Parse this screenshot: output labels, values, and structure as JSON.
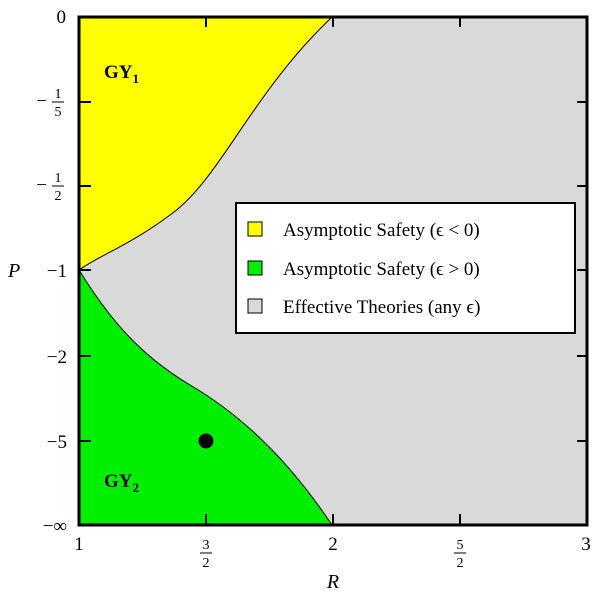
{
  "chart_data": {
    "type": "area",
    "xlabel": "R",
    "ylabel": "P",
    "x_ticks": [
      {
        "value": 1,
        "label": "1"
      },
      {
        "value": 1.5,
        "num": "3",
        "den": "2"
      },
      {
        "value": 2,
        "label": "2"
      },
      {
        "value": 2.5,
        "num": "5",
        "den": "2"
      },
      {
        "value": 3,
        "label": "3"
      }
    ],
    "y_ticks": [
      {
        "value": 0,
        "label": "0"
      },
      {
        "value": -0.2,
        "prefix": "−",
        "num": "1",
        "den": "5"
      },
      {
        "value": -0.5,
        "prefix": "−",
        "num": "1",
        "den": "2"
      },
      {
        "value": -1,
        "label": "−1"
      },
      {
        "value": -2,
        "label": "−2"
      },
      {
        "value": -5,
        "label": "−5"
      },
      {
        "value": "-inf",
        "label": "−∞"
      }
    ],
    "xlim": [
      1,
      3
    ],
    "ylim": [
      "-inf",
      0
    ],
    "y_scale": "compactified (nonlinear)",
    "regions": [
      {
        "name": "GY",
        "subscript": "1",
        "legend": "Asymptotic Safety (ϵ < 0)",
        "color": "#ffff00"
      },
      {
        "name": "GY",
        "subscript": "2",
        "legend": "Asymptotic Safety (ϵ > 0)",
        "color": "#00ee00"
      },
      {
        "legend": "Effective Theories (any ϵ)",
        "color": "#d9d9d9"
      }
    ],
    "points": [
      {
        "x": 1.5,
        "y": -5
      }
    ],
    "legend_position": "right"
  }
}
